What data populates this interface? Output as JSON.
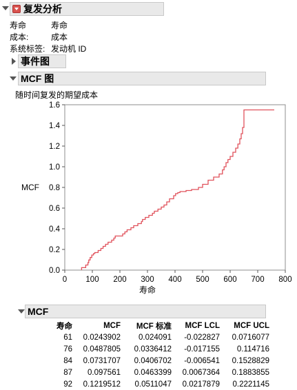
{
  "report": {
    "title": "复发分析",
    "info": [
      {
        "label": "寿命",
        "value": "寿命"
      },
      {
        "label": "成本:",
        "value": "成本"
      },
      {
        "label": "系统标签:",
        "value": "发动机 ID"
      }
    ]
  },
  "event_plot": {
    "title": "事件图"
  },
  "mcf_plot": {
    "title": "MCF 图",
    "subtitle": "随时间复发的期望成本"
  },
  "chart_data": {
    "type": "line",
    "step": true,
    "xlabel": "寿命",
    "ylabel": "MCF",
    "xlim": [
      0,
      800
    ],
    "ylim": [
      0,
      1.6
    ],
    "xticks": [
      0,
      100,
      200,
      300,
      400,
      500,
      600,
      700,
      800
    ],
    "yticks": [
      0.0,
      0.2,
      0.4,
      0.6,
      0.8,
      1.0,
      1.2,
      1.4,
      1.6
    ],
    "grid": false,
    "series_color": "#e0505a",
    "x": [
      61,
      76,
      84,
      87,
      92,
      98,
      104,
      109,
      121,
      131,
      139,
      148,
      157,
      170,
      178,
      183,
      210,
      218,
      226,
      240,
      250,
      265,
      278,
      282,
      292,
      305,
      318,
      325,
      338,
      350,
      360,
      370,
      380,
      395,
      402,
      410,
      418,
      440,
      460,
      485,
      500,
      520,
      540,
      560,
      572,
      578,
      585,
      592,
      600,
      610,
      620,
      628,
      635,
      640,
      645,
      650,
      760
    ],
    "y": [
      0.024,
      0.049,
      0.073,
      0.098,
      0.122,
      0.146,
      0.16,
      0.17,
      0.19,
      0.21,
      0.23,
      0.25,
      0.27,
      0.29,
      0.31,
      0.33,
      0.35,
      0.37,
      0.39,
      0.41,
      0.43,
      0.45,
      0.47,
      0.49,
      0.51,
      0.53,
      0.55,
      0.57,
      0.59,
      0.61,
      0.63,
      0.66,
      0.69,
      0.72,
      0.74,
      0.75,
      0.76,
      0.77,
      0.78,
      0.8,
      0.83,
      0.87,
      0.9,
      0.93,
      0.97,
      1.0,
      1.04,
      1.07,
      1.1,
      1.14,
      1.18,
      1.22,
      1.27,
      1.32,
      1.38,
      1.55,
      1.55
    ]
  },
  "mcf_table": {
    "title": "MCF",
    "columns": [
      "寿命",
      "MCF",
      "MCF 标准",
      "MCF LCL",
      "MCF UCL"
    ],
    "rows": [
      [
        "61",
        "0.0243902",
        "0.024091",
        "-0.022827",
        "0.0716077"
      ],
      [
        "76",
        "0.0487805",
        "0.0336412",
        "-0.017155",
        "0.114716"
      ],
      [
        "84",
        "0.0731707",
        "0.0406702",
        "-0.006541",
        "0.1528829"
      ],
      [
        "87",
        "0.097561",
        "0.0463399",
        "0.0067364",
        "0.1883855"
      ],
      [
        "92",
        "0.1219512",
        "0.0511047",
        "0.0217879",
        "0.2221145"
      ]
    ]
  }
}
